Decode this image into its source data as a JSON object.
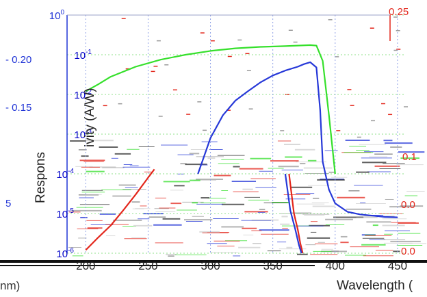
{
  "chart_data": {
    "type": "line",
    "xlabel": "Wavelength (",
    "xlabel_left_fragment": "nm)",
    "ylabel": "Responsivity (A/W)",
    "ylabel_visible_upper": "ivity (A/W)",
    "ylabel_visible_lower": "Respons",
    "xlim": [
      185,
      455
    ],
    "x_ticks": [
      200,
      250,
      300,
      350,
      400,
      450
    ],
    "inner_y_scale": "log",
    "inner_ylim": [
      1e-06,
      1
    ],
    "inner_y_ticks": [
      {
        "value": 1,
        "label": "10^0"
      },
      {
        "value": 0.1,
        "label": "10^-1"
      },
      {
        "value": 0.01,
        "label": "10^-2"
      },
      {
        "value": 0.001,
        "label": "10^-3"
      },
      {
        "value": 0.0001,
        "label": "10^-4"
      },
      {
        "value": 1e-05,
        "label": "10^-5"
      },
      {
        "value": 1e-06,
        "label": "10^-6"
      }
    ],
    "left_outer_ticks": [
      "- 0.20",
      "- 0.15",
      "5"
    ],
    "right_outer_ticks": [
      "0.25",
      "0.1",
      "0.0",
      "0.0"
    ],
    "grid": true,
    "series": [
      {
        "color": "#35e02b",
        "x": [
          200,
          210,
          220,
          240,
          260,
          280,
          300,
          320,
          340,
          360,
          370,
          380,
          385,
          390,
          395,
          400
        ],
        "y": [
          0.012,
          0.018,
          0.028,
          0.05,
          0.075,
          0.1,
          0.125,
          0.145,
          0.158,
          0.165,
          0.17,
          0.175,
          0.17,
          0.07,
          0.003,
          0.0001
        ]
      },
      {
        "color": "#2638d8",
        "x": [
          290,
          300,
          310,
          320,
          330,
          340,
          350,
          360,
          370,
          375,
          380,
          385,
          388,
          390,
          395,
          400,
          410,
          420,
          430,
          440,
          450
        ],
        "y": [
          0.0001,
          0.0008,
          0.003,
          0.007,
          0.012,
          0.02,
          0.03,
          0.04,
          0.05,
          0.058,
          0.065,
          0.048,
          0.004,
          0.0002,
          4e-05,
          1.8e-05,
          1.1e-05,
          9.5e-06,
          8.8e-06,
          8.2e-06,
          8e-06
        ]
      },
      {
        "color": "#e3261b",
        "x": [
          200,
          210,
          220,
          230,
          240,
          250,
          255
        ],
        "y": [
          1.2e-06,
          2.5e-06,
          5e-06,
          1.2e-05,
          3e-05,
          8e-05,
          0.00013
        ]
      },
      {
        "color": "#e3261b",
        "x": [
          363,
          367,
          370,
          372,
          374
        ],
        "y": [
          0.0001,
          1e-05,
          4e-06,
          1.8e-06,
          1e-06
        ]
      },
      {
        "color": "#2638d8",
        "x": [
          360,
          364,
          368,
          371,
          373
        ],
        "y": [
          0.0001,
          1.2e-05,
          4e-06,
          1.6e-06,
          1e-06
        ]
      }
    ]
  }
}
